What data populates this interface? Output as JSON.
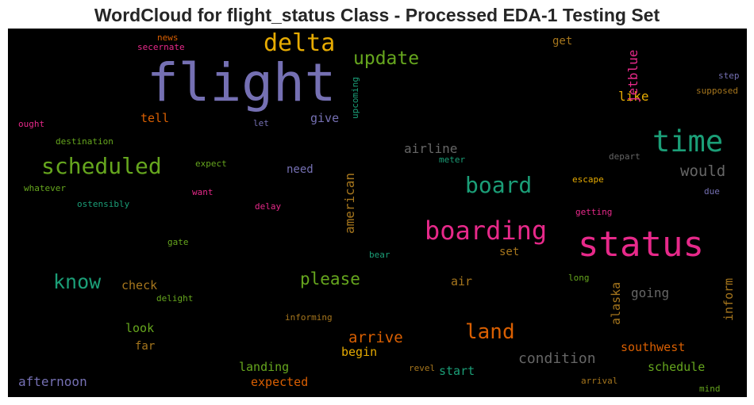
{
  "title": "WordCloud for flight_status Class - Processed EDA-1 Testing Set",
  "chart_data": {
    "type": "wordcloud",
    "title": "WordCloud for flight_status Class - Processed EDA-1 Testing Set",
    "background": "#000000",
    "words": [
      {
        "text": "flight",
        "weight": 100,
        "color": "#7570b3"
      },
      {
        "text": "status",
        "weight": 68,
        "color": "#e7298a"
      },
      {
        "text": "time",
        "weight": 56,
        "color": "#1b9e77"
      },
      {
        "text": "boarding",
        "weight": 50,
        "color": "#e7298a"
      },
      {
        "text": "delta",
        "weight": 46,
        "color": "#e6ab02"
      },
      {
        "text": "scheduled",
        "weight": 44,
        "color": "#66a61e"
      },
      {
        "text": "board",
        "weight": 42,
        "color": "#1b9e77"
      },
      {
        "text": "land",
        "weight": 40,
        "color": "#d95f02"
      },
      {
        "text": "know",
        "weight": 38,
        "color": "#1b9e77"
      },
      {
        "text": "update",
        "weight": 36,
        "color": "#66a61e"
      },
      {
        "text": "please",
        "weight": 33,
        "color": "#66a61e"
      },
      {
        "text": "would",
        "weight": 30,
        "color": "#666666"
      },
      {
        "text": "arrive",
        "weight": 30,
        "color": "#d95f02"
      },
      {
        "text": "condition",
        "weight": 28,
        "color": "#666666"
      },
      {
        "text": "airline",
        "weight": 25,
        "color": "#666666"
      },
      {
        "text": "going",
        "weight": 25,
        "color": "#666666"
      },
      {
        "text": "afternoon",
        "weight": 24,
        "color": "#7570b3"
      },
      {
        "text": "american",
        "weight": 24,
        "color": "#a6761d"
      },
      {
        "text": "like",
        "weight": 24,
        "color": "#e6ab02"
      },
      {
        "text": "jetblue",
        "weight": 24,
        "color": "#e7298a"
      },
      {
        "text": "southwest",
        "weight": 23,
        "color": "#d95f02"
      },
      {
        "text": "expected",
        "weight": 23,
        "color": "#d95f02"
      },
      {
        "text": "landing",
        "weight": 23,
        "color": "#66a61e"
      },
      {
        "text": "schedule",
        "weight": 23,
        "color": "#66a61e"
      },
      {
        "text": "start",
        "weight": 23,
        "color": "#1b9e77"
      },
      {
        "text": "begin",
        "weight": 23,
        "color": "#e6ab02"
      },
      {
        "text": "alaska",
        "weight": 23,
        "color": "#a6761d"
      },
      {
        "text": "inform",
        "weight": 23,
        "color": "#a6761d"
      },
      {
        "text": "check",
        "weight": 23,
        "color": "#a6761d"
      },
      {
        "text": "look",
        "weight": 23,
        "color": "#66a61e"
      },
      {
        "text": "tell",
        "weight": 23,
        "color": "#d95f02"
      },
      {
        "text": "give",
        "weight": 23,
        "color": "#7570b3"
      },
      {
        "text": "air",
        "weight": 23,
        "color": "#a6761d"
      },
      {
        "text": "need",
        "weight": 22,
        "color": "#7570b3"
      },
      {
        "text": "far",
        "weight": 22,
        "color": "#a6761d"
      },
      {
        "text": "set",
        "weight": 22,
        "color": "#a6761d"
      },
      {
        "text": "get",
        "weight": 22,
        "color": "#a6761d"
      },
      {
        "text": "upcoming",
        "weight": 12,
        "color": "#1b9e77"
      },
      {
        "text": "news",
        "weight": 12,
        "color": "#d95f02"
      },
      {
        "text": "secernate",
        "weight": 12,
        "color": "#e7298a"
      },
      {
        "text": "step",
        "weight": 12,
        "color": "#7570b3"
      },
      {
        "text": "supposed",
        "weight": 12,
        "color": "#a6761d"
      },
      {
        "text": "ought",
        "weight": 12,
        "color": "#e7298a"
      },
      {
        "text": "let",
        "weight": 12,
        "color": "#7570b3"
      },
      {
        "text": "destination",
        "weight": 12,
        "color": "#66a61e"
      },
      {
        "text": "meter",
        "weight": 12,
        "color": "#1b9e77"
      },
      {
        "text": "depart",
        "weight": 12,
        "color": "#666666"
      },
      {
        "text": "expect",
        "weight": 12,
        "color": "#66a61e"
      },
      {
        "text": "escape",
        "weight": 12,
        "color": "#e6ab02"
      },
      {
        "text": "whatever",
        "weight": 12,
        "color": "#66a61e"
      },
      {
        "text": "want",
        "weight": 12,
        "color": "#e7298a"
      },
      {
        "text": "due",
        "weight": 12,
        "color": "#7570b3"
      },
      {
        "text": "ostensibly",
        "weight": 12,
        "color": "#1b9e77"
      },
      {
        "text": "delay",
        "weight": 12,
        "color": "#e7298a"
      },
      {
        "text": "getting",
        "weight": 12,
        "color": "#e7298a"
      },
      {
        "text": "gate",
        "weight": 12,
        "color": "#66a61e"
      },
      {
        "text": "bear",
        "weight": 12,
        "color": "#1b9e77"
      },
      {
        "text": "long",
        "weight": 12,
        "color": "#66a61e"
      },
      {
        "text": "delight",
        "weight": 12,
        "color": "#66a61e"
      },
      {
        "text": "informing",
        "weight": 12,
        "color": "#a6761d"
      },
      {
        "text": "revel",
        "weight": 12,
        "color": "#a6761d"
      },
      {
        "text": "arrival",
        "weight": 12,
        "color": "#a6761d"
      },
      {
        "text": "mind",
        "weight": 12,
        "color": "#66a61e"
      }
    ]
  }
}
